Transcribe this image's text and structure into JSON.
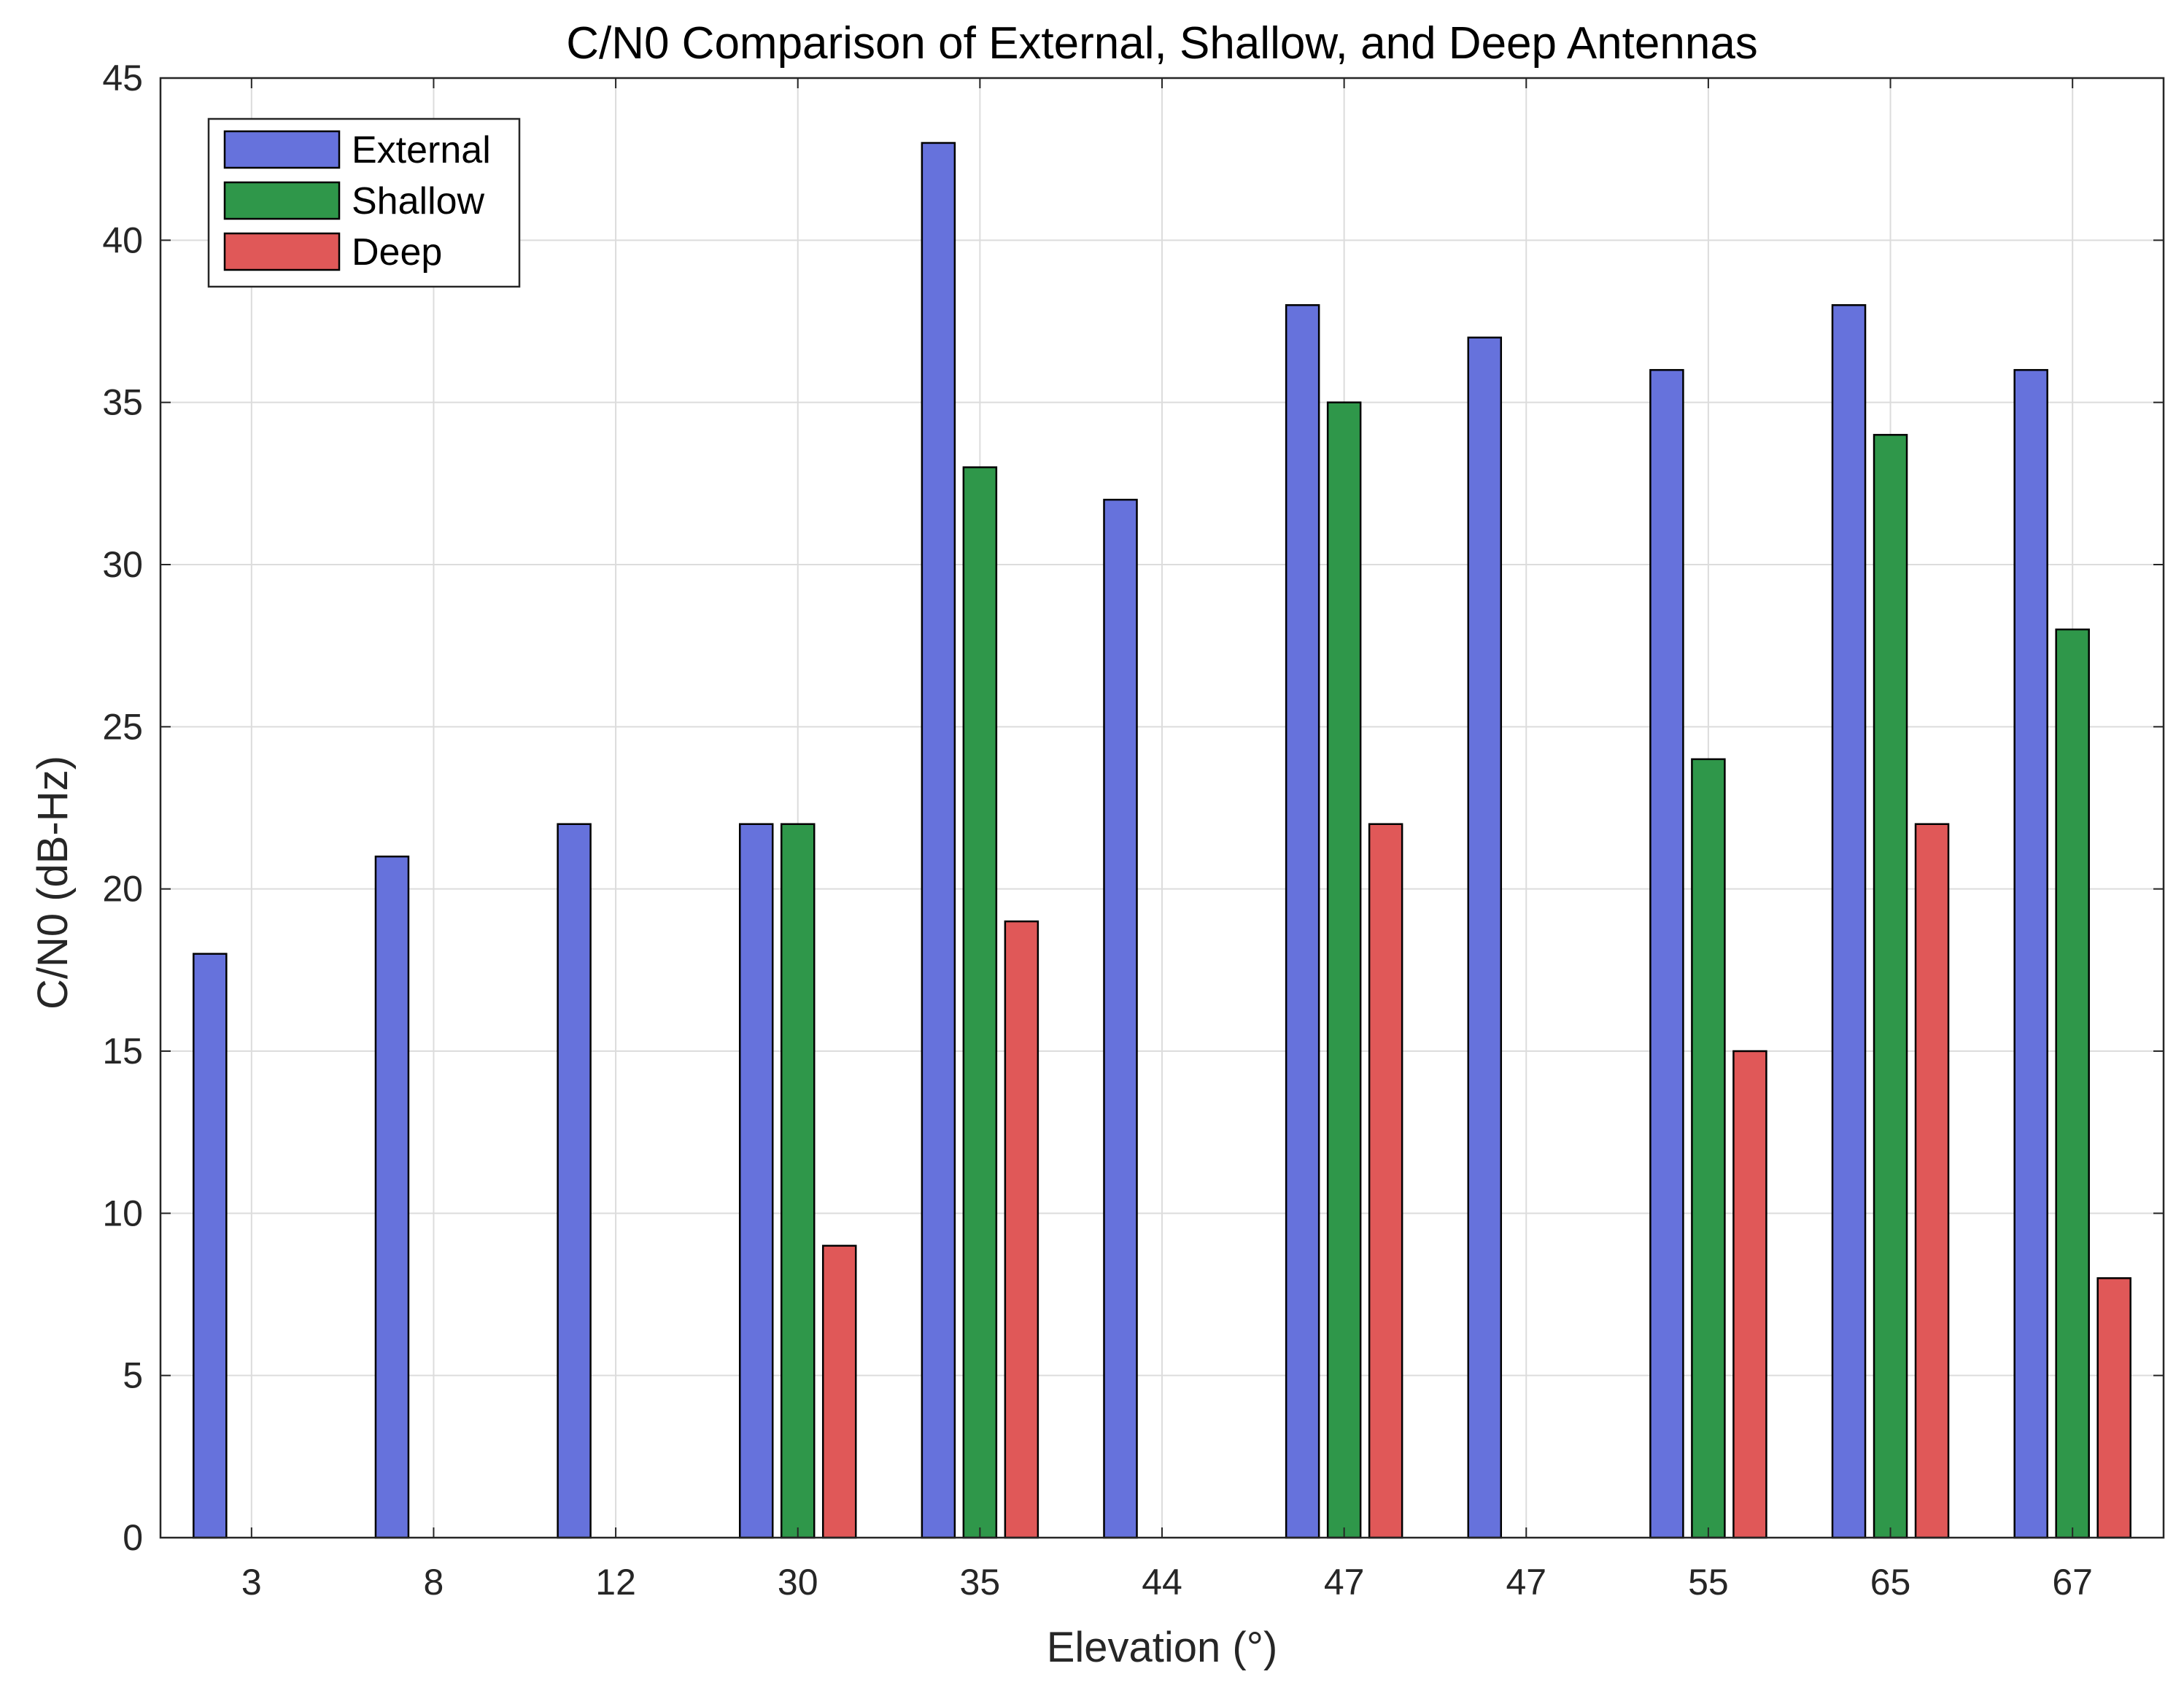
{
  "chart_data": {
    "type": "bar",
    "title": "C/N0 Comparison of External, Shallow, and Deep Antennas",
    "xlabel": "Elevation (°)",
    "ylabel": "C/N0 (dB-Hz)",
    "ylim": [
      0,
      45
    ],
    "yticks": [
      0,
      5,
      10,
      15,
      20,
      25,
      30,
      35,
      40,
      45
    ],
    "categories": [
      "3",
      "8",
      "12",
      "30",
      "35",
      "44",
      "47",
      "47",
      "55",
      "65",
      "67"
    ],
    "series": [
      {
        "name": "External",
        "color": "#6672dc",
        "values": [
          18,
          21,
          22,
          22,
          43,
          32,
          38,
          37,
          36,
          38,
          36
        ]
      },
      {
        "name": "Shallow",
        "color": "#2f974a",
        "values": [
          null,
          null,
          null,
          22,
          33,
          null,
          35,
          null,
          24,
          34,
          28
        ]
      },
      {
        "name": "Deep",
        "color": "#e05858",
        "values": [
          null,
          null,
          null,
          9,
          19,
          null,
          22,
          null,
          15,
          22,
          8
        ]
      }
    ],
    "grid": true,
    "legend_position": "top-left"
  }
}
